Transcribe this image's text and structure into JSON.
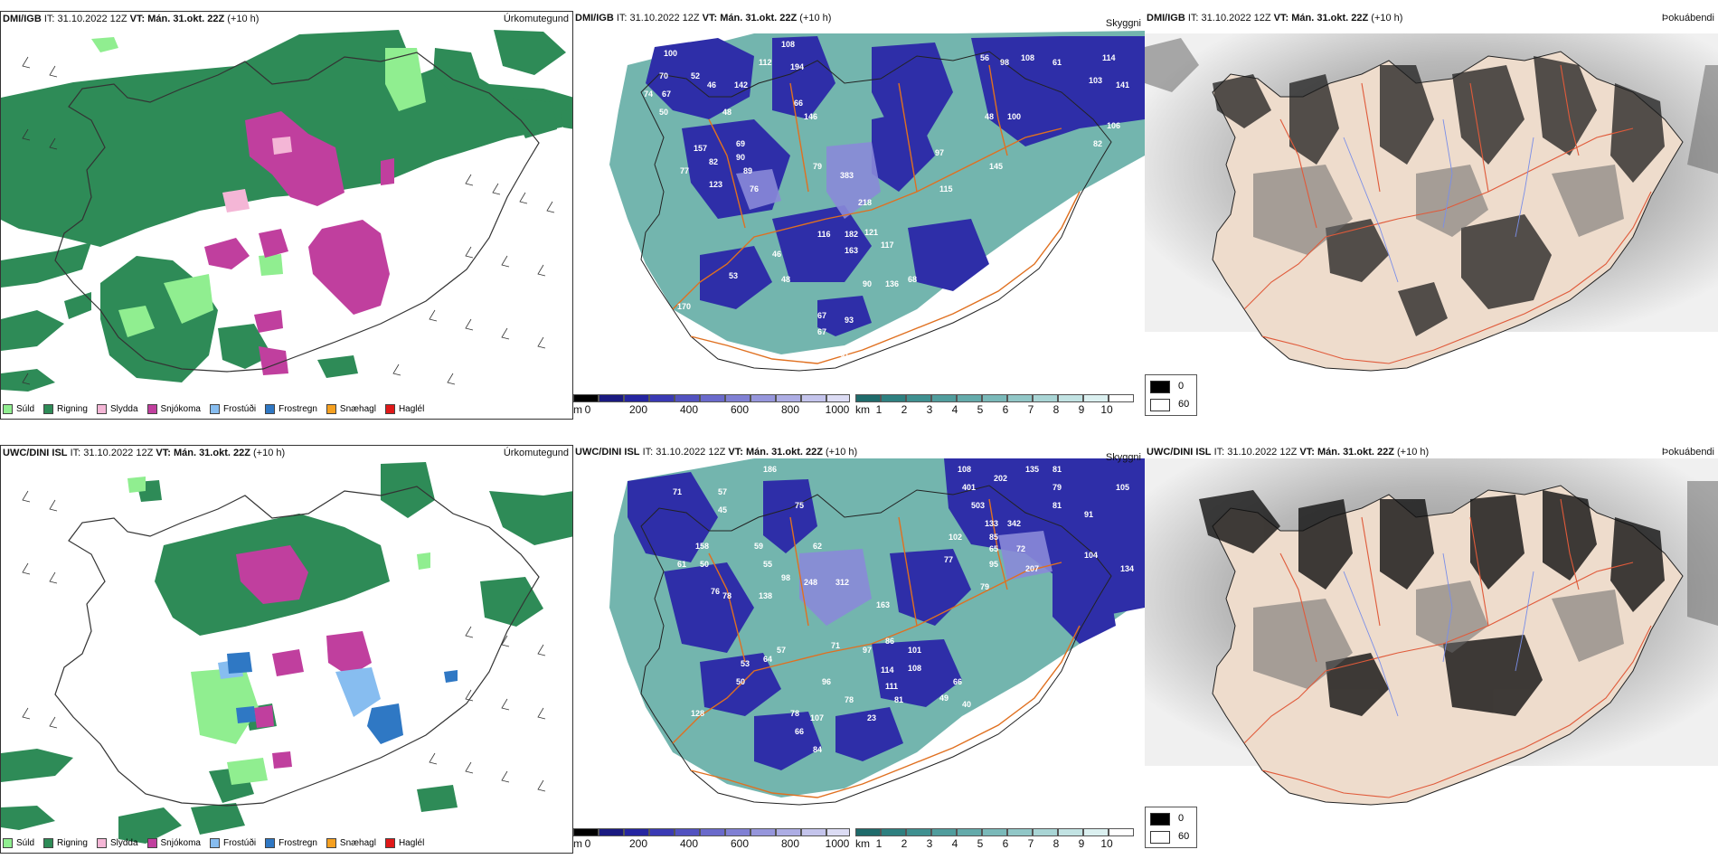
{
  "panels": [
    {
      "model": "DMI/IGB",
      "it_label": "IT:",
      "it": "31.10.2022 12Z",
      "vt_label": "VT:",
      "vt": "Mán. 31.okt. 22Z",
      "offset": "(+10 h)",
      "type": "Úrkomutegund"
    },
    {
      "model": "DMI/IGB",
      "it_label": "IT:",
      "it": "31.10.2022 12Z",
      "vt_label": "VT:",
      "vt": "Mán. 31.okt. 22Z",
      "offset": "(+10 h)",
      "type": "Skyggni"
    },
    {
      "model": "DMI/IGB",
      "it_label": "IT:",
      "it": "31.10.2022 12Z",
      "vt_label": "VT:",
      "vt": "Mán. 31.okt. 22Z",
      "offset": "(+10 h)",
      "type": "Þokuábendi"
    },
    {
      "model": "UWC/DINI ISL",
      "it_label": "IT:",
      "it": "31.10.2022 12Z",
      "vt_label": "VT:",
      "vt": "Mán. 31.okt. 22Z",
      "offset": "(+10 h)",
      "type": "Úrkomutegund"
    },
    {
      "model": "UWC/DINI ISL",
      "it_label": "IT:",
      "it": "31.10.2022 12Z",
      "vt_label": "VT:",
      "vt": "Mán. 31.okt. 22Z",
      "offset": "(+10 h)",
      "type": "Skyggni"
    },
    {
      "model": "UWC/DINI ISL",
      "it_label": "IT:",
      "it": "31.10.2022 12Z",
      "vt_label": "VT:",
      "vt": "Mán. 31.okt. 22Z",
      "offset": "(+10 h)",
      "type": "Þokuábendi"
    }
  ],
  "precip_legend": [
    {
      "label": "Súld",
      "color": "#90ee90"
    },
    {
      "label": "Rigning",
      "color": "#2e8b57"
    },
    {
      "label": "Slydda",
      "color": "#f4b6d6"
    },
    {
      "label": "Snjókoma",
      "color": "#c03f9e"
    },
    {
      "label": "Frostúði",
      "color": "#87bdf0"
    },
    {
      "label": "Frostregn",
      "color": "#2f78c4"
    },
    {
      "label": "Snæhagl",
      "color": "#f5a020"
    },
    {
      "label": "Haglél",
      "color": "#e01818"
    }
  ],
  "height_bar": {
    "unit": "m",
    "ticks": [
      "0",
      "200",
      "400",
      "600",
      "800",
      "1000"
    ],
    "colors": [
      "#000000",
      "#1a1a80",
      "#2525a0",
      "#3a3ab4",
      "#5252c0",
      "#6a6acb",
      "#8080d4",
      "#9696dc",
      "#adade4",
      "#c4c4ec",
      "#dcdcf4"
    ]
  },
  "vis_bar": {
    "unit": "km",
    "ticks": [
      "1",
      "2",
      "3",
      "4",
      "5",
      "6",
      "7",
      "8",
      "9",
      "10"
    ],
    "colors": [
      "#1f6b6b",
      "#2e8080",
      "#3f9090",
      "#509d9d",
      "#64abab",
      "#7ab9b9",
      "#91c7c7",
      "#a9d5d5",
      "#c2e3e3",
      "#dbf0f0",
      "#ffffff"
    ]
  },
  "fog_legend": [
    {
      "value": "0",
      "color": "#000000"
    },
    {
      "value": "60",
      "color": "#ffffff"
    }
  ],
  "vis_labels_top": [
    "100",
    "108",
    "194",
    "112",
    "70",
    "52",
    "46",
    "142",
    "74",
    "67",
    "50",
    "48",
    "66",
    "56",
    "98",
    "108",
    "61",
    "114",
    "103",
    "141",
    "48",
    "100",
    "106",
    "82",
    "157",
    "82",
    "77",
    "69",
    "90",
    "89",
    "123",
    "76",
    "79",
    "383",
    "218",
    "116",
    "182",
    "121",
    "117",
    "163",
    "46",
    "53",
    "48",
    "90",
    "136",
    "68",
    "67",
    "93",
    "67",
    "91",
    "170",
    "160",
    "146",
    "97",
    "115",
    "145"
  ],
  "vis_labels_bottom": [
    "186",
    "108",
    "135",
    "81",
    "87",
    "118",
    "71",
    "57",
    "45",
    "75",
    "401",
    "202",
    "79",
    "81",
    "105",
    "503",
    "133",
    "342",
    "85",
    "91",
    "65",
    "72",
    "102",
    "77",
    "95",
    "207",
    "104",
    "134",
    "59",
    "55",
    "98",
    "62",
    "158",
    "50",
    "61",
    "138",
    "76",
    "78",
    "248",
    "312",
    "163",
    "79",
    "57",
    "71",
    "97",
    "86",
    "101",
    "114",
    "108",
    "111",
    "53",
    "64",
    "50",
    "96",
    "66",
    "78",
    "81",
    "49",
    "40",
    "128",
    "78",
    "107",
    "66",
    "84",
    "23"
  ]
}
